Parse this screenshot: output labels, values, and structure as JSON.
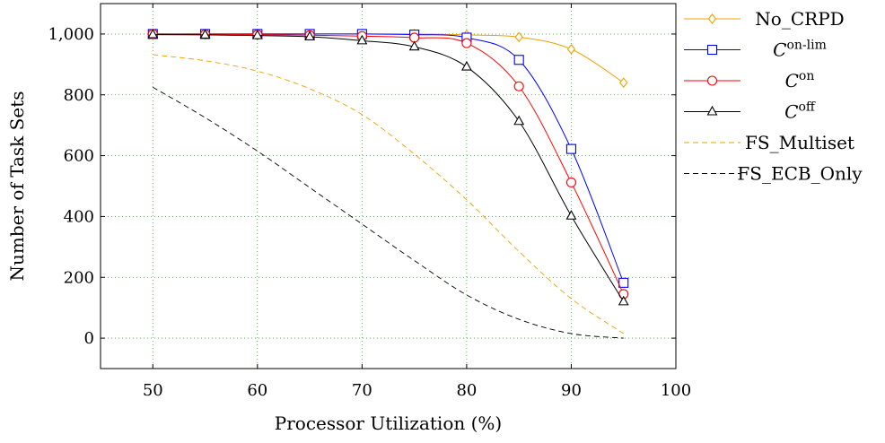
{
  "chart_data": {
    "type": "line",
    "xlabel": "Processor Utilization (%)",
    "ylabel": "Number of Task Sets",
    "xlim": [
      45,
      100
    ],
    "ylim": [
      -100,
      1100
    ],
    "x_ticks": [
      50,
      60,
      70,
      80,
      90,
      100
    ],
    "x_tick_labels": [
      "50",
      "60",
      "70",
      "80",
      "90",
      "100"
    ],
    "y_ticks": [
      0,
      200,
      400,
      600,
      800,
      1000
    ],
    "y_tick_labels": [
      "0",
      "200",
      "400",
      "600",
      "800",
      "1,000"
    ],
    "grid": "dotted green, major ticks",
    "legend_position": "outside-right",
    "series": [
      {
        "name": "No_CRPD",
        "label_main": "No_CRPD",
        "label_sup": "",
        "color": "#f0a000",
        "marker": "diamond",
        "dash": "solid",
        "x": [
          50,
          55,
          60,
          65,
          70,
          75,
          80,
          85,
          90,
          95
        ],
        "y": [
          1000,
          1000,
          1000,
          1000,
          1000,
          1000,
          997,
          990,
          950,
          840
        ]
      },
      {
        "name": "C on-lim",
        "label_main": "C",
        "label_sup": "on-lim",
        "color": "#0000ff",
        "marker": "square",
        "dash": "solid",
        "x": [
          50,
          55,
          60,
          65,
          70,
          75,
          80,
          85,
          90,
          95
        ],
        "y": [
          1000,
          1000,
          1000,
          1000,
          1000,
          998,
          988,
          915,
          622,
          182
        ]
      },
      {
        "name": "C on",
        "label_main": "C",
        "label_sup": "on",
        "color": "#ff0000",
        "marker": "circle",
        "dash": "solid",
        "x": [
          50,
          55,
          60,
          65,
          70,
          75,
          80,
          85,
          90,
          95
        ],
        "y": [
          1000,
          999,
          998,
          996,
          993,
          988,
          970,
          828,
          512,
          145
        ]
      },
      {
        "name": "C off",
        "label_main": "C",
        "label_sup": "off",
        "color": "#000000",
        "marker": "triangle",
        "dash": "solid",
        "x": [
          50,
          55,
          60,
          65,
          70,
          75,
          80,
          85,
          90,
          95
        ],
        "y": [
          998,
          997,
          995,
          991,
          978,
          958,
          892,
          713,
          402,
          120
        ]
      },
      {
        "name": "FS_Multiset",
        "label_main": "FS_Multiset",
        "label_sup": "",
        "color": "#f0a000",
        "marker": "none",
        "dash": "dashed",
        "x": [
          50,
          55,
          60,
          65,
          70,
          75,
          80,
          85,
          90,
          95
        ],
        "y": [
          932,
          912,
          878,
          820,
          735,
          605,
          455,
          285,
          130,
          15
        ]
      },
      {
        "name": "FS_ECB_Only",
        "label_main": "FS_ECB_Only",
        "label_sup": "",
        "color": "#000000",
        "marker": "none",
        "dash": "dashed",
        "x": [
          50,
          55,
          60,
          65,
          70,
          75,
          80,
          85,
          90,
          95
        ],
        "y": [
          825,
          725,
          615,
          495,
          375,
          255,
          142,
          62,
          15,
          0
        ]
      }
    ]
  }
}
